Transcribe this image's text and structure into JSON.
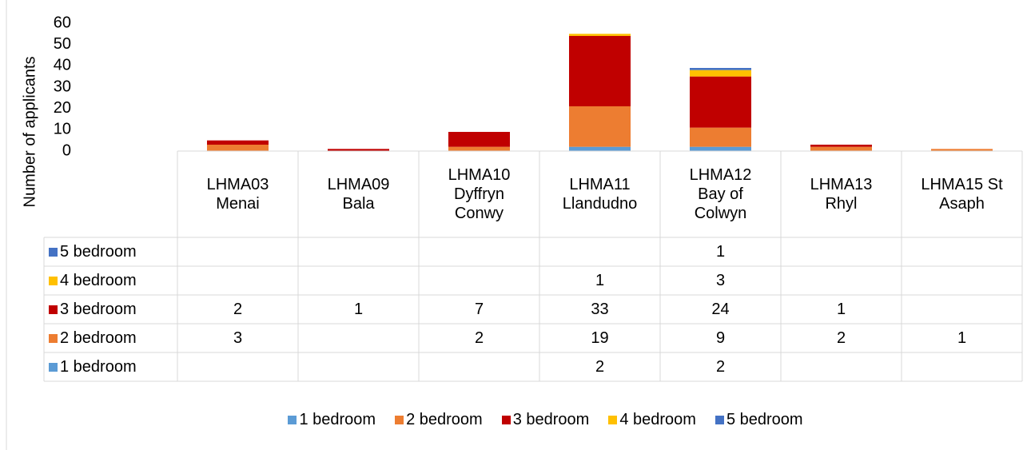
{
  "chart_data": {
    "type": "bar",
    "stacked": true,
    "y_label": "Number of applicants",
    "categories": [
      "LHMA03 Menai",
      "LHMA09 Bala",
      "LHMA10 Dyffryn Conwy",
      "LHMA11 Llandudno",
      "LHMA12 Bay of Colwyn",
      "LHMA13 Rhyl",
      "LHMA15 St Asaph"
    ],
    "series": [
      {
        "name": "1 bedroom",
        "color": "#5b9bd5",
        "values": [
          null,
          null,
          null,
          2,
          2,
          null,
          null
        ]
      },
      {
        "name": "2 bedroom",
        "color": "#ed7d31",
        "values": [
          3,
          null,
          2,
          19,
          9,
          2,
          1
        ]
      },
      {
        "name": "3 bedroom",
        "color": "#c00000",
        "values": [
          2,
          1,
          7,
          33,
          24,
          1,
          null
        ]
      },
      {
        "name": "4 bedroom",
        "color": "#ffc000",
        "values": [
          null,
          null,
          null,
          1,
          3,
          null,
          null
        ]
      },
      {
        "name": "5 bedroom",
        "color": "#4472c4",
        "values": [
          null,
          null,
          null,
          null,
          1,
          null,
          null
        ]
      }
    ],
    "ylim": [
      0,
      60
    ],
    "yticks": [
      0,
      10,
      20,
      30,
      40,
      50,
      60
    ],
    "grid": false,
    "legend": "bottom",
    "data_table": true
  }
}
